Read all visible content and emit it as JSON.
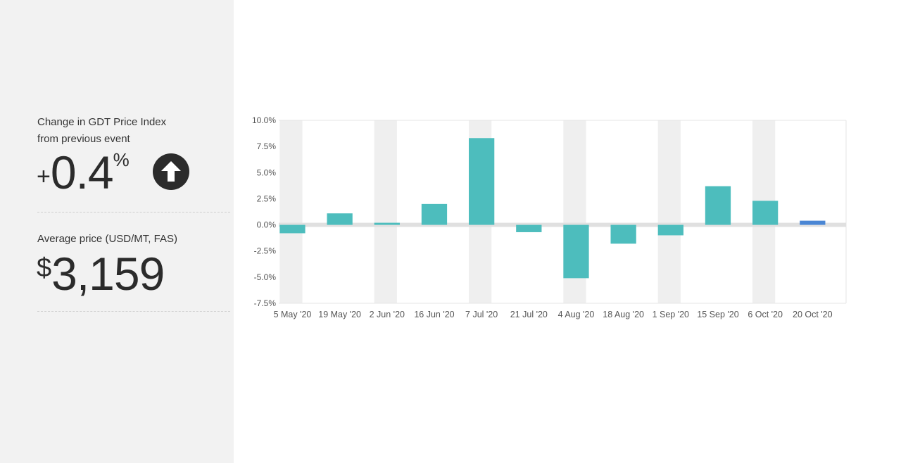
{
  "stats": {
    "index_label_line1": "Change in GDT Price Index",
    "index_label_line2": "from previous event",
    "index_sign": "+",
    "index_value": "0.4",
    "index_unit": "%",
    "index_direction_icon": "arrow-up-circle-icon",
    "price_label": "Average price (USD/MT, FAS)",
    "price_currency": "$",
    "price_value": "3,159"
  },
  "colors": {
    "bar": "#4dbdbd",
    "bar_latest": "#4a86d4",
    "band": "#efefef",
    "zero_line": "#e0e0e0",
    "text_dark": "#2b2b2b"
  },
  "chart_data": {
    "type": "bar",
    "categories": [
      "5 May '20",
      "19 May '20",
      "2 Jun '20",
      "16 Jun '20",
      "7 Jul '20",
      "21 Jul '20",
      "4 Aug '20",
      "18 Aug '20",
      "1 Sep '20",
      "15 Sep '20",
      "6 Oct '20",
      "20 Oct '20"
    ],
    "values": [
      -0.8,
      1.1,
      0.2,
      2.0,
      8.3,
      -0.7,
      -5.1,
      -1.8,
      -1.0,
      3.7,
      2.3,
      0.4
    ],
    "yticks": [
      "10.0%",
      "7.5%",
      "5.0%",
      "2.5%",
      "0.0%",
      "-2.5%",
      "-5.0%",
      "-7.5%"
    ],
    "ylim": [
      -7.5,
      10.0
    ],
    "grid": false,
    "legend": "none"
  }
}
